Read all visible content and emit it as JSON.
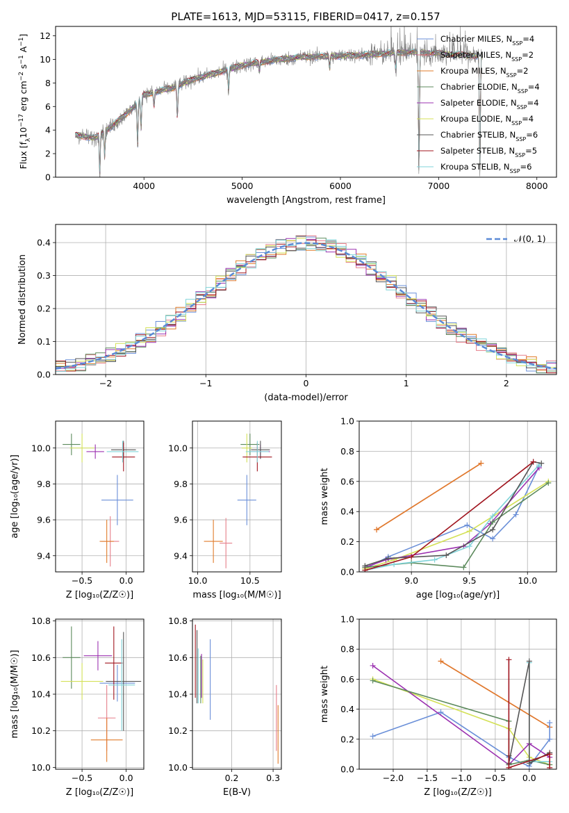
{
  "figure": {
    "title": "PLATE=1613, MJD=53115, FIBERID=0417, z=0.157"
  },
  "colors": {
    "chabrier_miles": "#6a8fd8",
    "salpeter_miles": "#e67e8a",
    "kroupa_miles": "#e07b2a",
    "chabrier_elodie": "#5c8a5c",
    "salpeter_elodie": "#9b30b0",
    "kroupa_elodie": "#d4e157",
    "chabrier_stelib": "#555555",
    "salpeter_stelib": "#a0141e",
    "kroupa_stelib": "#7fd3d8",
    "data_spectrum": "#808080",
    "normal_curve": "#5b8ad6",
    "grid": "#b0b0b0"
  },
  "legend_entries": [
    {
      "base": "Chabrier MILES, N",
      "sub": "SSP",
      "tail": "=4",
      "color_key": "chabrier_miles"
    },
    {
      "base": "Salpeter MILES, N",
      "sub": "SSP",
      "tail": "=2",
      "color_key": "salpeter_miles"
    },
    {
      "base": "Kroupa MILES, N",
      "sub": "SSP",
      "tail": "=2",
      "color_key": "kroupa_miles"
    },
    {
      "base": "Chabrier ELODIE, N",
      "sub": "SSP",
      "tail": "=4",
      "color_key": "chabrier_elodie"
    },
    {
      "base": "Salpeter ELODIE, N",
      "sub": "SSP",
      "tail": "=4",
      "color_key": "salpeter_elodie"
    },
    {
      "base": "Kroupa ELODIE, N",
      "sub": "SSP",
      "tail": "=4",
      "color_key": "kroupa_elodie"
    },
    {
      "base": "Chabrier STELIB, N",
      "sub": "SSP",
      "tail": "=6",
      "color_key": "chabrier_stelib"
    },
    {
      "base": "Salpeter STELIB, N",
      "sub": "SSP",
      "tail": "=5",
      "color_key": "salpeter_stelib"
    },
    {
      "base": "Kroupa STELIB, N",
      "sub": "SSP",
      "tail": "=6",
      "color_key": "kroupa_stelib"
    }
  ],
  "chart_data": [
    {
      "id": "spectrum",
      "type": "line",
      "xlabel": "wavelength [Angstrom, rest frame]",
      "ylabel_parts": [
        "Flux [f",
        "λ",
        "10",
        "−17",
        " erg cm",
        "−2",
        " s",
        "−1",
        " A",
        "−1",
        "]"
      ],
      "xlim": [
        3100,
        8200
      ],
      "ylim": [
        0,
        12.8
      ],
      "xticks": [
        4000,
        5000,
        6000,
        7000,
        8000
      ],
      "yticks": [
        0,
        2,
        4,
        6,
        8,
        10,
        12
      ],
      "continuum_x": [
        3300,
        3500,
        3700,
        3900,
        4000,
        4300,
        4500,
        4800,
        5000,
        5300,
        5600,
        6000,
        6300,
        6600,
        6800,
        7000,
        7400
      ],
      "continuum_y": [
        3.6,
        3.3,
        4.5,
        6.0,
        7.0,
        7.6,
        8.3,
        9.0,
        9.5,
        9.9,
        10.2,
        10.3,
        10.4,
        10.6,
        10.6,
        10.5,
        10.3
      ],
      "absorption_lines": [
        [
          3550,
          0.2
        ],
        [
          3600,
          1.8
        ],
        [
          3935,
          2.6
        ],
        [
          3970,
          4.0
        ],
        [
          4102,
          6.0
        ],
        [
          4340,
          5.0
        ],
        [
          4861,
          7.2
        ],
        [
          5175,
          9.0
        ],
        [
          5890,
          9.2
        ],
        [
          6563,
          9.0
        ],
        [
          6800,
          0.0
        ],
        [
          7420,
          0.0
        ]
      ],
      "legend_position": "upper-right"
    },
    {
      "id": "residuals",
      "type": "histogram",
      "xlabel": "(data-model)/error",
      "ylabel": "Normed distribution",
      "xlim": [
        -2.5,
        2.5
      ],
      "ylim": [
        0,
        0.455
      ],
      "xticks": [
        -2,
        -1,
        0,
        1,
        2
      ],
      "yticks": [
        0.0,
        0.1,
        0.2,
        0.3,
        0.4
      ],
      "bin_width": 0.1,
      "legend": "𝒩(0, 1)",
      "legend_position": "upper-right"
    },
    {
      "id": "age_vs_Z",
      "type": "scatter-errorbar",
      "xlabel": "Z [log₁₀(Z/Z☉)]",
      "ylabel": "age  [log₁₀(age/yr)]",
      "xlim": [
        -0.8,
        0.2
      ],
      "ylim": [
        9.31,
        10.15
      ],
      "xticks": [
        -0.5,
        0.0
      ],
      "yticks": [
        9.4,
        9.6,
        9.8,
        10.0
      ],
      "points": [
        {
          "color_key": "chabrier_miles",
          "x": -0.1,
          "y": 9.71,
          "xerr": 0.18,
          "yerr": 0.14
        },
        {
          "color_key": "salpeter_miles",
          "x": -0.18,
          "y": 9.48,
          "xerr": 0.1,
          "yerr": 0.14
        },
        {
          "color_key": "kroupa_miles",
          "x": -0.22,
          "y": 9.48,
          "xerr": 0.08,
          "yerr": 0.12
        },
        {
          "color_key": "chabrier_elodie",
          "x": -0.62,
          "y": 10.02,
          "xerr": 0.1,
          "yerr": 0.06
        },
        {
          "color_key": "salpeter_elodie",
          "x": -0.35,
          "y": 9.98,
          "xerr": 0.1,
          "yerr": 0.04
        },
        {
          "color_key": "kroupa_elodie",
          "x": -0.5,
          "y": 10.0,
          "xerr": 0.14,
          "yerr": 0.08
        },
        {
          "color_key": "chabrier_stelib",
          "x": -0.03,
          "y": 9.99,
          "xerr": 0.14,
          "yerr": 0.05
        },
        {
          "color_key": "salpeter_stelib",
          "x": -0.03,
          "y": 9.95,
          "xerr": 0.13,
          "yerr": 0.08
        },
        {
          "color_key": "kroupa_stelib",
          "x": -0.04,
          "y": 9.98,
          "xerr": 0.18,
          "yerr": 0.06
        }
      ]
    },
    {
      "id": "age_vs_mass",
      "type": "scatter-errorbar",
      "xlabel": "mass [log₁₀(M/M☉)]",
      "ylabel": "",
      "xlim": [
        9.95,
        10.8
      ],
      "ylim": [
        9.31,
        10.15
      ],
      "xticks": [
        10.0,
        10.5
      ],
      "yticks": [
        9.4,
        9.6,
        9.8,
        10.0
      ],
      "points": [
        {
          "color_key": "chabrier_miles",
          "x": 10.47,
          "y": 9.71,
          "xerr": 0.09,
          "yerr": 0.14
        },
        {
          "color_key": "salpeter_miles",
          "x": 10.27,
          "y": 9.47,
          "xerr": 0.06,
          "yerr": 0.14
        },
        {
          "color_key": "kroupa_miles",
          "x": 10.15,
          "y": 9.48,
          "xerr": 0.09,
          "yerr": 0.12
        },
        {
          "color_key": "chabrier_elodie",
          "x": 10.5,
          "y": 10.02,
          "xerr": 0.09,
          "yerr": 0.06
        },
        {
          "color_key": "salpeter_elodie",
          "x": 10.6,
          "y": 9.98,
          "xerr": 0.09,
          "yerr": 0.04
        },
        {
          "color_key": "kroupa_elodie",
          "x": 10.47,
          "y": 10.0,
          "xerr": 0.05,
          "yerr": 0.08
        },
        {
          "color_key": "chabrier_stelib",
          "x": 10.6,
          "y": 9.99,
          "xerr": 0.09,
          "yerr": 0.05
        },
        {
          "color_key": "salpeter_stelib",
          "x": 10.57,
          "y": 9.95,
          "xerr": 0.14,
          "yerr": 0.08
        },
        {
          "color_key": "kroupa_stelib",
          "x": 10.57,
          "y": 9.98,
          "xerr": 0.11,
          "yerr": 0.06
        }
      ]
    },
    {
      "id": "mass_weight_vs_age",
      "type": "line",
      "xlabel": "age  [log₁₀(age/yr)]",
      "ylabel": "mass weight",
      "xlim": [
        8.55,
        10.25
      ],
      "ylim": [
        0,
        1.0
      ],
      "xticks": [
        9.0,
        9.5,
        10.0
      ],
      "yticks": [
        0.0,
        0.2,
        0.4,
        0.6,
        0.8,
        1.0
      ],
      "series": [
        {
          "color_key": "salpeter_miles",
          "x": [
            8.7,
            9.6
          ],
          "y": [
            0.28,
            0.72
          ]
        },
        {
          "color_key": "kroupa_miles",
          "x": [
            8.7,
            9.6
          ],
          "y": [
            0.28,
            0.72
          ]
        },
        {
          "color_key": "chabrier_miles",
          "x": [
            8.6,
            8.8,
            9.48,
            9.7,
            9.9,
            10.1
          ],
          "y": [
            0.02,
            0.1,
            0.31,
            0.22,
            0.38,
            0.7
          ]
        },
        {
          "color_key": "kroupa_elodie",
          "x": [
            8.6,
            8.85,
            9.5,
            10.18
          ],
          "y": [
            0.02,
            0.08,
            0.27,
            0.6
          ]
        },
        {
          "color_key": "salpeter_elodie",
          "x": [
            8.6,
            8.78,
            9.45,
            9.68,
            10.1
          ],
          "y": [
            0.03,
            0.08,
            0.17,
            0.32,
            0.69
          ]
        },
        {
          "color_key": "chabrier_elodie",
          "x": [
            8.6,
            9.0,
            9.45,
            9.7,
            10.18
          ],
          "y": [
            0.03,
            0.06,
            0.03,
            0.33,
            0.59
          ]
        },
        {
          "color_key": "kroupa_stelib",
          "x": [
            8.6,
            8.85,
            9.2,
            9.5,
            9.7,
            10.1
          ],
          "y": [
            0.01,
            0.05,
            0.08,
            0.17,
            0.37,
            0.71
          ]
        },
        {
          "color_key": "chabrier_stelib",
          "x": [
            8.6,
            8.8,
            9.3,
            9.7,
            10.05,
            10.12
          ],
          "y": [
            0.04,
            0.09,
            0.11,
            0.28,
            0.73,
            0.72
          ]
        },
        {
          "color_key": "salpeter_stelib",
          "x": [
            8.6,
            9.0,
            10.05
          ],
          "y": [
            0.01,
            0.1,
            0.73
          ]
        }
      ]
    },
    {
      "id": "mass_vs_Z",
      "type": "scatter-errorbar",
      "xlabel": "Z [log₁₀(Z/Z☉)]",
      "ylabel": "mass [log₁₀(M/M☉)]",
      "xlim": [
        -0.8,
        0.2
      ],
      "ylim": [
        9.99,
        10.81
      ],
      "xticks": [
        -0.5,
        0.0
      ],
      "yticks": [
        10.0,
        10.2,
        10.4,
        10.6,
        10.8
      ],
      "points": [
        {
          "color_key": "chabrier_miles",
          "x": -0.1,
          "y": 10.46,
          "xerr": 0.2,
          "yerr": 0.1
        },
        {
          "color_key": "salpeter_miles",
          "x": -0.22,
          "y": 10.27,
          "xerr": 0.1,
          "yerr": 0.18
        },
        {
          "color_key": "kroupa_miles",
          "x": -0.22,
          "y": 10.15,
          "xerr": 0.18,
          "yerr": 0.12
        },
        {
          "color_key": "chabrier_elodie",
          "x": -0.62,
          "y": 10.6,
          "xerr": 0.1,
          "yerr": 0.17
        },
        {
          "color_key": "salpeter_elodie",
          "x": -0.32,
          "y": 10.61,
          "xerr": 0.16,
          "yerr": 0.08
        },
        {
          "color_key": "kroupa_elodie",
          "x": -0.5,
          "y": 10.47,
          "xerr": 0.24,
          "yerr": 0.1
        },
        {
          "color_key": "chabrier_stelib",
          "x": -0.03,
          "y": 10.47,
          "xerr": 0.2,
          "yerr": 0.27
        },
        {
          "color_key": "salpeter_stelib",
          "x": -0.14,
          "y": 10.57,
          "xerr": 0.1,
          "yerr": 0.2
        },
        {
          "color_key": "kroupa_stelib",
          "x": -0.05,
          "y": 10.45,
          "xerr": 0.15,
          "yerr": 0.25
        }
      ]
    },
    {
      "id": "mass_vs_ebv",
      "type": "scatter-errorbar",
      "xlabel": "E(B-V)",
      "ylabel": "",
      "xlim": [
        0.105,
        0.32
      ],
      "ylim": [
        9.99,
        10.81
      ],
      "xticks": [
        0.2,
        0.3
      ],
      "yticks": [
        10.0,
        10.2,
        10.4,
        10.6,
        10.8
      ],
      "points": [
        {
          "color_key": "chabrier_miles",
          "x": 0.148,
          "y": 10.48,
          "xerr": 0,
          "yerr": 0.22
        },
        {
          "color_key": "salpeter_miles",
          "x": 0.308,
          "y": 10.27,
          "xerr": 0,
          "yerr": 0.18
        },
        {
          "color_key": "kroupa_miles",
          "x": 0.312,
          "y": 10.18,
          "xerr": 0,
          "yerr": 0.16
        },
        {
          "color_key": "chabrier_elodie",
          "x": 0.125,
          "y": 10.48,
          "xerr": 0,
          "yerr": 0.13
        },
        {
          "color_key": "salpeter_elodie",
          "x": 0.127,
          "y": 10.5,
          "xerr": 0,
          "yerr": 0.12
        },
        {
          "color_key": "kroupa_elodie",
          "x": 0.13,
          "y": 10.47,
          "xerr": 0,
          "yerr": 0.12
        },
        {
          "color_key": "chabrier_stelib",
          "x": 0.116,
          "y": 10.55,
          "xerr": 0,
          "yerr": 0.2
        },
        {
          "color_key": "salpeter_stelib",
          "x": 0.112,
          "y": 10.58,
          "xerr": 0,
          "yerr": 0.2
        },
        {
          "color_key": "kroupa_stelib",
          "x": 0.119,
          "y": 10.5,
          "xerr": 0,
          "yerr": 0.15
        }
      ]
    },
    {
      "id": "mass_weight_vs_Z",
      "type": "line",
      "xlabel": "Z [log₁₀(Z/Z☉)]",
      "ylabel": "mass weight",
      "xlim": [
        -2.5,
        0.4
      ],
      "ylim": [
        0,
        1.0
      ],
      "xticks": [
        -2.0,
        -1.5,
        -1.0,
        -0.5,
        0.0
      ],
      "yticks": [
        0.0,
        0.2,
        0.4,
        0.6,
        0.8,
        1.0
      ],
      "series": [
        {
          "color_key": "salpeter_miles",
          "x": [
            -1.3,
            0.3
          ],
          "y": [
            0.72,
            0.28
          ]
        },
        {
          "color_key": "kroupa_miles",
          "x": [
            -1.3,
            0.3
          ],
          "y": [
            0.72,
            0.28
          ]
        },
        {
          "color_key": "chabrier_miles",
          "x": [
            -2.3,
            -1.3,
            -0.3,
            0.0,
            0.3,
            0.3
          ],
          "y": [
            0.22,
            0.38,
            0.08,
            0.02,
            0.2,
            0.31
          ]
        },
        {
          "color_key": "kroupa_elodie",
          "x": [
            -2.3,
            -0.3,
            0.0,
            0.3
          ],
          "y": [
            0.6,
            0.27,
            0.08,
            0.03
          ]
        },
        {
          "color_key": "salpeter_elodie",
          "x": [
            -2.3,
            -0.3,
            0.0,
            0.3
          ],
          "y": [
            0.69,
            0.03,
            0.17,
            0.08
          ]
        },
        {
          "color_key": "chabrier_elodie",
          "x": [
            -2.3,
            -0.3,
            -0.3,
            0.0,
            0.3
          ],
          "y": [
            0.59,
            0.32,
            0.03,
            0.06,
            0.03
          ]
        },
        {
          "color_key": "kroupa_stelib",
          "x": [
            0.0,
            0.0,
            0.3
          ],
          "y": [
            0.71,
            0.05,
            0.05
          ]
        },
        {
          "color_key": "chabrier_stelib",
          "x": [
            -0.3,
            -0.3,
            0.0,
            0.0,
            0.3
          ],
          "y": [
            0.09,
            0.04,
            0.72,
            0.04,
            0.11
          ]
        },
        {
          "color_key": "salpeter_stelib",
          "x": [
            -0.3,
            -0.3,
            0.3,
            0.3
          ],
          "y": [
            0.73,
            0.01,
            0.1,
            0.01
          ]
        }
      ]
    }
  ]
}
